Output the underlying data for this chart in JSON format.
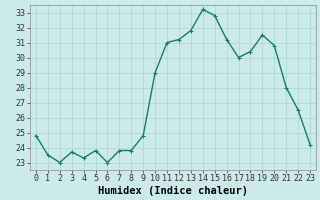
{
  "x": [
    0,
    1,
    2,
    3,
    4,
    5,
    6,
    7,
    8,
    9,
    10,
    11,
    12,
    13,
    14,
    15,
    16,
    17,
    18,
    19,
    20,
    21,
    22,
    23
  ],
  "y": [
    24.8,
    23.5,
    23.0,
    23.7,
    23.3,
    23.8,
    23.0,
    23.8,
    23.8,
    24.8,
    29.0,
    31.0,
    31.2,
    31.8,
    33.2,
    32.8,
    31.2,
    30.0,
    30.4,
    31.5,
    30.8,
    28.0,
    26.5,
    24.2
  ],
  "line_color": "#1a7a6e",
  "marker": "+",
  "marker_size": 3,
  "bg_color": "#cceaea",
  "grid_color": "#aad4d4",
  "xlabel": "Humidex (Indice chaleur)",
  "ylim": [
    22.5,
    33.5
  ],
  "xlim": [
    -0.5,
    23.5
  ],
  "yticks": [
    23,
    24,
    25,
    26,
    27,
    28,
    29,
    30,
    31,
    32,
    33
  ],
  "xticks": [
    0,
    1,
    2,
    3,
    4,
    5,
    6,
    7,
    8,
    9,
    10,
    11,
    12,
    13,
    14,
    15,
    16,
    17,
    18,
    19,
    20,
    21,
    22,
    23
  ],
  "xtick_labels": [
    "0",
    "1",
    "2",
    "3",
    "4",
    "5",
    "6",
    "7",
    "8",
    "9",
    "10",
    "11",
    "12",
    "13",
    "14",
    "15",
    "16",
    "17",
    "18",
    "19",
    "20",
    "21",
    "22",
    "23"
  ],
  "xlabel_fontsize": 7.5,
  "tick_fontsize": 6,
  "line_width": 1.0,
  "spine_color": "#999999"
}
